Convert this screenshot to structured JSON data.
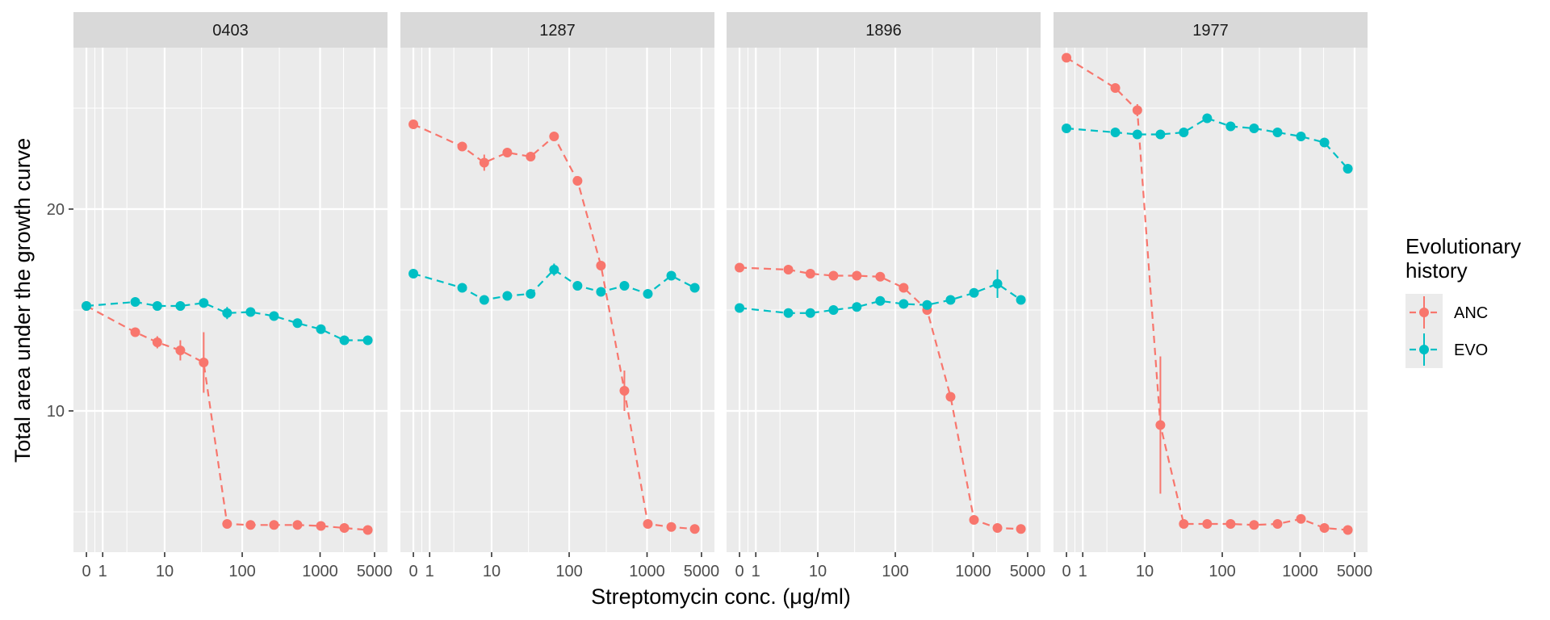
{
  "chart_data": {
    "type": "line",
    "facets": [
      "0403",
      "1287",
      "1896",
      "1977"
    ],
    "xlabel": "Streptomycin conc. (μg/ml)",
    "ylabel": "Total area under the growth curve",
    "x_scale": "pseudo-log",
    "x_ticks": [
      "0",
      "1",
      "10",
      "100",
      "1000",
      "5000"
    ],
    "xlim": [
      0,
      5000
    ],
    "y_ticks": [
      "10",
      "20"
    ],
    "ylim": [
      3.0,
      28.0
    ],
    "grid": true,
    "legend": {
      "title_lines": [
        "Evolutionary",
        "history"
      ],
      "placement": "right",
      "entries": [
        "ANC",
        "EVO"
      ]
    },
    "series_colors": {
      "ANC": "#F8766D",
      "EVO": "#00BFC4"
    },
    "series": [
      {
        "facet": "0403",
        "name": "ANC",
        "points": [
          {
            "x": 0,
            "y": 15.2
          },
          {
            "x": 4,
            "y": 13.9
          },
          {
            "x": 8,
            "y": 13.4,
            "err": 0.3
          },
          {
            "x": 16,
            "y": 13.0,
            "err": 0.5
          },
          {
            "x": 32,
            "y": 12.4,
            "err": 1.5
          },
          {
            "x": 64,
            "y": 4.4
          },
          {
            "x": 128,
            "y": 4.35
          },
          {
            "x": 256,
            "y": 4.35
          },
          {
            "x": 512,
            "y": 4.35
          },
          {
            "x": 1024,
            "y": 4.3
          },
          {
            "x": 2048,
            "y": 4.2
          },
          {
            "x": 4096,
            "y": 4.1
          }
        ]
      },
      {
        "facet": "0403",
        "name": "EVO",
        "points": [
          {
            "x": 0,
            "y": 15.2
          },
          {
            "x": 4,
            "y": 15.4
          },
          {
            "x": 8,
            "y": 15.2
          },
          {
            "x": 16,
            "y": 15.2
          },
          {
            "x": 32,
            "y": 15.35
          },
          {
            "x": 64,
            "y": 14.85,
            "err": 0.3
          },
          {
            "x": 128,
            "y": 14.9
          },
          {
            "x": 256,
            "y": 14.7
          },
          {
            "x": 512,
            "y": 14.35
          },
          {
            "x": 1024,
            "y": 14.05
          },
          {
            "x": 2048,
            "y": 13.5
          },
          {
            "x": 4096,
            "y": 13.5
          }
        ]
      },
      {
        "facet": "1287",
        "name": "ANC",
        "points": [
          {
            "x": 0,
            "y": 24.2
          },
          {
            "x": 4,
            "y": 23.1
          },
          {
            "x": 8,
            "y": 22.3,
            "err": 0.4
          },
          {
            "x": 16,
            "y": 22.8
          },
          {
            "x": 32,
            "y": 22.6
          },
          {
            "x": 64,
            "y": 23.6
          },
          {
            "x": 128,
            "y": 21.4
          },
          {
            "x": 256,
            "y": 17.2
          },
          {
            "x": 512,
            "y": 11.0,
            "err": 1.0
          },
          {
            "x": 1024,
            "y": 4.4
          },
          {
            "x": 2048,
            "y": 4.25
          },
          {
            "x": 4096,
            "y": 4.15
          }
        ]
      },
      {
        "facet": "1287",
        "name": "EVO",
        "points": [
          {
            "x": 0,
            "y": 16.8
          },
          {
            "x": 4,
            "y": 16.1
          },
          {
            "x": 8,
            "y": 15.5
          },
          {
            "x": 16,
            "y": 15.7
          },
          {
            "x": 32,
            "y": 15.8
          },
          {
            "x": 64,
            "y": 17.0,
            "err": 0.3
          },
          {
            "x": 128,
            "y": 16.2
          },
          {
            "x": 256,
            "y": 15.9
          },
          {
            "x": 512,
            "y": 16.2
          },
          {
            "x": 1024,
            "y": 15.8
          },
          {
            "x": 2048,
            "y": 16.7
          },
          {
            "x": 4096,
            "y": 16.1
          }
        ]
      },
      {
        "facet": "1896",
        "name": "ANC",
        "points": [
          {
            "x": 0,
            "y": 17.1
          },
          {
            "x": 4,
            "y": 17.0
          },
          {
            "x": 8,
            "y": 16.8
          },
          {
            "x": 16,
            "y": 16.7
          },
          {
            "x": 32,
            "y": 16.7
          },
          {
            "x": 64,
            "y": 16.65
          },
          {
            "x": 128,
            "y": 16.1
          },
          {
            "x": 256,
            "y": 15.0
          },
          {
            "x": 512,
            "y": 10.7
          },
          {
            "x": 1024,
            "y": 4.6
          },
          {
            "x": 2048,
            "y": 4.2
          },
          {
            "x": 4096,
            "y": 4.15
          }
        ]
      },
      {
        "facet": "1896",
        "name": "EVO",
        "points": [
          {
            "x": 0,
            "y": 15.1
          },
          {
            "x": 4,
            "y": 14.85
          },
          {
            "x": 8,
            "y": 14.85
          },
          {
            "x": 16,
            "y": 15.0
          },
          {
            "x": 32,
            "y": 15.15
          },
          {
            "x": 64,
            "y": 15.45
          },
          {
            "x": 128,
            "y": 15.3
          },
          {
            "x": 256,
            "y": 15.25
          },
          {
            "x": 512,
            "y": 15.5
          },
          {
            "x": 1024,
            "y": 15.85
          },
          {
            "x": 2048,
            "y": 16.3,
            "err": 0.7
          },
          {
            "x": 4096,
            "y": 15.5
          }
        ]
      },
      {
        "facet": "1977",
        "name": "ANC",
        "points": [
          {
            "x": 0,
            "y": 27.5
          },
          {
            "x": 4,
            "y": 26.0
          },
          {
            "x": 8,
            "y": 24.9,
            "err": 0.3
          },
          {
            "x": 16,
            "y": 9.3,
            "err": 3.4
          },
          {
            "x": 32,
            "y": 4.4
          },
          {
            "x": 64,
            "y": 4.4
          },
          {
            "x": 128,
            "y": 4.4
          },
          {
            "x": 256,
            "y": 4.35
          },
          {
            "x": 512,
            "y": 4.4
          },
          {
            "x": 1024,
            "y": 4.65
          },
          {
            "x": 2048,
            "y": 4.2
          },
          {
            "x": 4096,
            "y": 4.1
          }
        ]
      },
      {
        "facet": "1977",
        "name": "EVO",
        "points": [
          {
            "x": 0,
            "y": 24.0
          },
          {
            "x": 4,
            "y": 23.8
          },
          {
            "x": 8,
            "y": 23.7
          },
          {
            "x": 16,
            "y": 23.7
          },
          {
            "x": 32,
            "y": 23.8
          },
          {
            "x": 64,
            "y": 24.5
          },
          {
            "x": 128,
            "y": 24.1
          },
          {
            "x": 256,
            "y": 24.0
          },
          {
            "x": 512,
            "y": 23.8
          },
          {
            "x": 1024,
            "y": 23.6
          },
          {
            "x": 2048,
            "y": 23.3
          },
          {
            "x": 4096,
            "y": 22.0
          }
        ]
      }
    ]
  }
}
